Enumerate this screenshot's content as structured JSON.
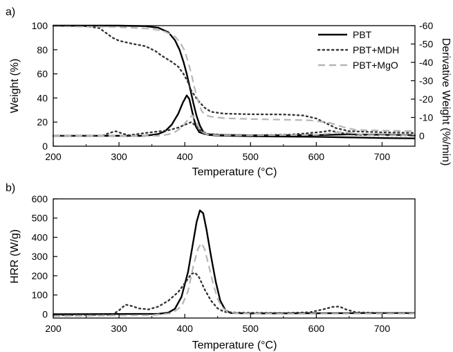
{
  "colors": {
    "PBT": "#000000",
    "PBT+MDH": "#333333",
    "PBT+MgO": "#b5b5b5",
    "axis": "#000000",
    "background": "#ffffff"
  },
  "chart_data": [
    {
      "panel_label": "a)",
      "type": "line",
      "xlabel": "Temperature (°C)",
      "ylabel": "Weight (%)",
      "y2label": "Derivative Weight (%/min)",
      "xlim": [
        200,
        750
      ],
      "ylim": [
        0,
        100
      ],
      "y2lim": [
        0,
        -60
      ],
      "x_ticks": [
        "200",
        "300",
        "400",
        "500",
        "600",
        "700"
      ],
      "y_ticks": [
        "0",
        "20",
        "40",
        "60",
        "80",
        "100"
      ],
      "y2_ticks": [
        "0",
        "-10",
        "-20",
        "-30",
        "-40",
        "-50",
        "-60"
      ],
      "legend": {
        "position": "top-right",
        "entries": [
          "PBT",
          "PBT+MDH",
          "PBT+MgO"
        ]
      },
      "grid": false,
      "series": [
        {
          "name": "PBT",
          "axis": "left",
          "style": "solid",
          "points": [
            [
              200,
              100
            ],
            [
              300,
              100
            ],
            [
              340,
              99.6
            ],
            [
              360,
              98.2
            ],
            [
              375,
              94.5
            ],
            [
              385,
              88
            ],
            [
              392,
              80
            ],
            [
              398,
              70
            ],
            [
              403,
              60
            ],
            [
              408,
              48
            ],
            [
              413,
              36
            ],
            [
              418,
              25
            ],
            [
              423,
              17
            ],
            [
              428,
              12
            ],
            [
              435,
              9.5
            ],
            [
              450,
              8.8
            ],
            [
              500,
              8.3
            ],
            [
              600,
              7.8
            ],
            [
              650,
              7.3
            ],
            [
              700,
              6.8
            ],
            [
              750,
              6.5
            ]
          ]
        },
        {
          "name": "PBT+MDH",
          "axis": "left",
          "style": "dotted",
          "points": [
            [
              200,
              100
            ],
            [
              250,
              99.5
            ],
            [
              270,
              98
            ],
            [
              280,
              94
            ],
            [
              290,
              90
            ],
            [
              300,
              87.5
            ],
            [
              320,
              85
            ],
            [
              340,
              83
            ],
            [
              355,
              79
            ],
            [
              365,
              75
            ],
            [
              380,
              70
            ],
            [
              390,
              66
            ],
            [
              398,
              60
            ],
            [
              405,
              53
            ],
            [
              410,
              46
            ],
            [
              420,
              38
            ],
            [
              430,
              32
            ],
            [
              440,
              28.5
            ],
            [
              460,
              27
            ],
            [
              500,
              26.5
            ],
            [
              550,
              26.3
            ],
            [
              580,
              25.5
            ],
            [
              600,
              23
            ],
            [
              615,
              19
            ],
            [
              630,
              15
            ],
            [
              650,
              12.5
            ],
            [
              700,
              11.5
            ],
            [
              750,
              11
            ]
          ]
        },
        {
          "name": "PBT+MgO",
          "axis": "left",
          "style": "dashed",
          "points": [
            [
              200,
              99.5
            ],
            [
              280,
              99
            ],
            [
              320,
              98.3
            ],
            [
              350,
              97.3
            ],
            [
              370,
              95
            ],
            [
              385,
              91
            ],
            [
              393,
              86
            ],
            [
              400,
              79
            ],
            [
              405,
              70
            ],
            [
              410,
              60
            ],
            [
              415,
              48
            ],
            [
              420,
              38
            ],
            [
              425,
              30
            ],
            [
              430,
              26
            ],
            [
              440,
              24.5
            ],
            [
              460,
              23.2
            ],
            [
              500,
              22.5
            ],
            [
              550,
              22
            ],
            [
              590,
              21.5
            ],
            [
              620,
              19.5
            ],
            [
              640,
              16
            ],
            [
              660,
              13.5
            ],
            [
              700,
              13
            ],
            [
              750,
              12.5
            ]
          ]
        },
        {
          "name": "PBT",
          "axis": "right",
          "style": "solid",
          "points": [
            [
              200,
              0
            ],
            [
              340,
              0
            ],
            [
              350,
              -0.5
            ],
            [
              360,
              -1
            ],
            [
              370,
              -2.5
            ],
            [
              380,
              -6
            ],
            [
              390,
              -12
            ],
            [
              397,
              -18
            ],
            [
              403,
              -22
            ],
            [
              407,
              -20
            ],
            [
              412,
              -12
            ],
            [
              417,
              -5
            ],
            [
              422,
              -2
            ],
            [
              430,
              -1
            ],
            [
              450,
              -0.5
            ],
            [
              500,
              -0.3
            ],
            [
              600,
              -0.4
            ],
            [
              650,
              -0.8
            ],
            [
              700,
              -0.6
            ],
            [
              750,
              -0.4
            ]
          ]
        },
        {
          "name": "PBT+MDH",
          "axis": "right",
          "style": "dotted",
          "points": [
            [
              200,
              0
            ],
            [
              275,
              0
            ],
            [
              285,
              -1.5
            ],
            [
              295,
              -2.5
            ],
            [
              305,
              -1.3
            ],
            [
              315,
              -0.3
            ],
            [
              330,
              -1
            ],
            [
              340,
              -1.5
            ],
            [
              355,
              -2.2
            ],
            [
              375,
              -3
            ],
            [
              390,
              -4.5
            ],
            [
              400,
              -6
            ],
            [
              410,
              -7.5
            ],
            [
              418,
              -5
            ],
            [
              425,
              -2.5
            ],
            [
              435,
              -1
            ],
            [
              460,
              -0.5
            ],
            [
              500,
              -0.3
            ],
            [
              560,
              -0.6
            ],
            [
              590,
              -1.5
            ],
            [
              610,
              -2.2
            ],
            [
              620,
              -2.8
            ],
            [
              630,
              -2.2
            ],
            [
              645,
              -1
            ],
            [
              660,
              -0.5
            ],
            [
              700,
              -0.3
            ],
            [
              750,
              -0.2
            ]
          ]
        },
        {
          "name": "PBT+MgO",
          "axis": "right",
          "style": "dashed",
          "points": [
            [
              200,
              0
            ],
            [
              360,
              0
            ],
            [
              375,
              -0.8
            ],
            [
              385,
              -2
            ],
            [
              395,
              -4.5
            ],
            [
              402,
              -7.5
            ],
            [
              407,
              -10
            ],
            [
              412,
              -11
            ],
            [
              417,
              -8
            ],
            [
              422,
              -4
            ],
            [
              428,
              -1.8
            ],
            [
              435,
              -0.7
            ],
            [
              450,
              -0.3
            ],
            [
              500,
              -0.2
            ],
            [
              600,
              -0.5
            ],
            [
              625,
              -1.5
            ],
            [
              640,
              -2.2
            ],
            [
              655,
              -1.5
            ],
            [
              670,
              -0.6
            ],
            [
              700,
              -0.3
            ],
            [
              750,
              -0.3
            ]
          ]
        }
      ]
    },
    {
      "panel_label": "b)",
      "type": "line",
      "xlabel": "Temperature (°C)",
      "ylabel": "HRR (W/g)",
      "xlim": [
        200,
        750
      ],
      "ylim": [
        -20,
        600
      ],
      "x_ticks": [
        "200",
        "300",
        "400",
        "500",
        "600",
        "700"
      ],
      "y_ticks": [
        "0",
        "100",
        "200",
        "300",
        "400",
        "500",
        "600"
      ],
      "grid": false,
      "series": [
        {
          "name": "PBT",
          "style": "solid",
          "points": [
            [
              200,
              0
            ],
            [
              360,
              2
            ],
            [
              375,
              8
            ],
            [
              385,
              28
            ],
            [
              395,
              90
            ],
            [
              405,
              220
            ],
            [
              412,
              360
            ],
            [
              418,
              480
            ],
            [
              423,
              540
            ],
            [
              428,
              525
            ],
            [
              433,
              440
            ],
            [
              440,
              300
            ],
            [
              447,
              170
            ],
            [
              454,
              70
            ],
            [
              462,
              20
            ],
            [
              470,
              6
            ],
            [
              500,
              4
            ],
            [
              600,
              5
            ],
            [
              700,
              6
            ],
            [
              750,
              6
            ]
          ]
        },
        {
          "name": "PBT+MDH",
          "style": "dotted",
          "points": [
            [
              200,
              -5
            ],
            [
              290,
              -3
            ],
            [
              300,
              20
            ],
            [
              310,
              50
            ],
            [
              320,
              42
            ],
            [
              330,
              30
            ],
            [
              345,
              25
            ],
            [
              360,
              40
            ],
            [
              375,
              70
            ],
            [
              390,
              115
            ],
            [
              403,
              175
            ],
            [
              410,
              210
            ],
            [
              416,
              215
            ],
            [
              422,
              190
            ],
            [
              430,
              130
            ],
            [
              440,
              70
            ],
            [
              450,
              30
            ],
            [
              460,
              12
            ],
            [
              480,
              8
            ],
            [
              550,
              6
            ],
            [
              590,
              10
            ],
            [
              610,
              25
            ],
            [
              625,
              38
            ],
            [
              635,
              40
            ],
            [
              645,
              25
            ],
            [
              660,
              10
            ],
            [
              700,
              6
            ],
            [
              750,
              5
            ]
          ]
        },
        {
          "name": "PBT+MgO",
          "style": "dashed",
          "points": [
            [
              200,
              -10
            ],
            [
              350,
              -5
            ],
            [
              380,
              5
            ],
            [
              395,
              40
            ],
            [
              405,
              120
            ],
            [
              413,
              250
            ],
            [
              420,
              340
            ],
            [
              425,
              370
            ],
            [
              430,
              340
            ],
            [
              436,
              260
            ],
            [
              443,
              160
            ],
            [
              450,
              80
            ],
            [
              457,
              35
            ],
            [
              465,
              12
            ],
            [
              480,
              4
            ],
            [
              550,
              2
            ],
            [
              620,
              3
            ],
            [
              700,
              3
            ],
            [
              750,
              3
            ]
          ]
        }
      ]
    }
  ]
}
